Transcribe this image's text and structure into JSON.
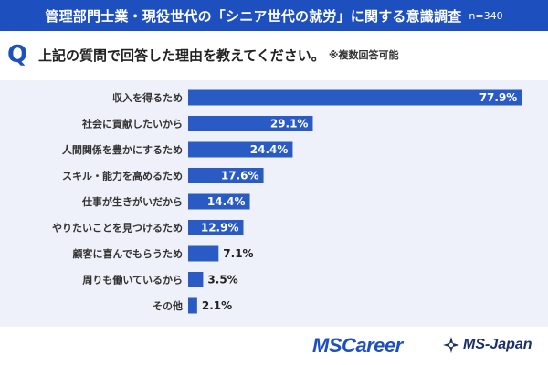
{
  "header": {
    "title": "管理部門士業・現役世代の「シニア世代の就労」に関する意識調査",
    "sample": "n=340"
  },
  "question": {
    "mark": "Q",
    "text": "上記の質問で回答した理由を教えてください。",
    "note": "※複数回答可能"
  },
  "colors": {
    "bar": "#2a5bc4",
    "header": "#1d4fbe",
    "panel": "#eef1f9"
  },
  "chart_data": {
    "type": "bar",
    "orientation": "horizontal",
    "unit": "%",
    "categories": [
      "収入を得るため",
      "社会に貢献したいから",
      "人間関係を豊かにするため",
      "スキル・能力を高めるため",
      "仕事が生きがいだから",
      "やりたいことを見つけるため",
      "顧客に喜んでもらうため",
      "周りも働いているから",
      "その他"
    ],
    "values": [
      77.9,
      29.1,
      24.4,
      17.6,
      14.4,
      12.9,
      7.1,
      3.5,
      2.1
    ],
    "labels": [
      "77.9%",
      "29.1%",
      "24.4%",
      "17.6%",
      "14.4%",
      "12.9%",
      "7.1%",
      "3.5%",
      "2.1%"
    ],
    "xlim": [
      0,
      100
    ],
    "grid": false,
    "legend": "none"
  },
  "footer": {
    "logo_mscareer": "MSCareer",
    "logo_msjapan": "MS-Japan"
  }
}
